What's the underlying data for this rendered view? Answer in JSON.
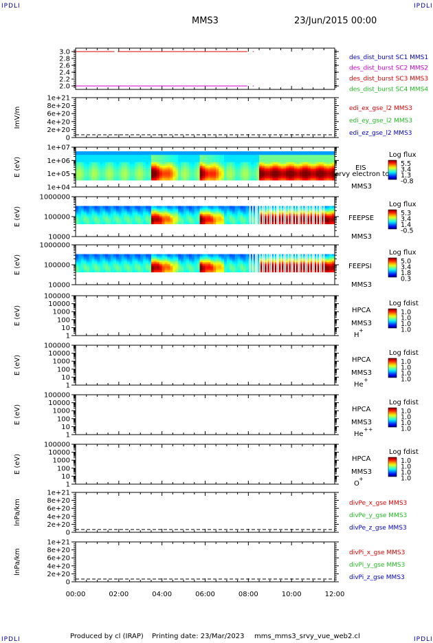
{
  "corners": {
    "tl": "IPDLI",
    "tr": "IPDLI",
    "bl": "IPDLI",
    "br": "IPDLI"
  },
  "header": {
    "spacecraft": "MMS3",
    "date": "23/Jun/2015 00:00"
  },
  "footer": {
    "produced": "Produced by cl (IRAP)",
    "printed": "Printing date: 23/Mar/2023",
    "script": "mms_mms3_srvy_vue_web2.cl"
  },
  "colors": {
    "red": "#dd0000",
    "green": "#22bb22",
    "blue": "#0000cc",
    "magenta": "#cc00cc"
  },
  "chart_data": {
    "type": "line",
    "time_axis": {
      "range_hours": [
        0,
        12
      ],
      "ticks": [
        "00:00",
        "02:00",
        "04:00",
        "06:00",
        "08:00",
        "10:00",
        "12:00"
      ]
    },
    "panels": [
      {
        "id": "burst",
        "type": "line",
        "ylim": [
          1.9,
          3.1
        ],
        "ticks": [
          "3.0",
          "2.8",
          "2.6",
          "2.4",
          "2.2",
          "2.0"
        ],
        "tick_values": [
          3.0,
          2.8,
          2.6,
          2.4,
          2.2,
          2.0
        ],
        "legend": [
          {
            "label": "des_dist_burst SC1 MMS1",
            "color": "#0000cc"
          },
          {
            "label": "des_dist_burst SC2 MMS2",
            "color": "#cc00cc"
          },
          {
            "label": "des_dist_burst SC3 MMS3",
            "color": "#dd0000"
          },
          {
            "label": "des_dist_burst SC4 MMS4",
            "color": "#22bb22"
          }
        ],
        "series": [
          {
            "name": "des_dist_burst SC3 MMS3",
            "y": 3.0,
            "segments": [
              [
                0.0,
                1.8
              ],
              [
                1.95,
                7.95
              ],
              [
                8.2,
                8.25
              ]
            ]
          },
          {
            "name": "des_dist_burst SC2 MMS2",
            "y": 2.0,
            "segments": [
              [
                0.0,
                7.95
              ],
              [
                8.2,
                8.25
              ]
            ]
          }
        ]
      },
      {
        "id": "edi",
        "type": "line",
        "ylabel": "ImV/m",
        "ylim": [
          0,
          1e+21
        ],
        "ticks": [
          "1e+21",
          "8e+20",
          "6e+20",
          "4e+20",
          "2e+20",
          "0"
        ],
        "tick_values": [
          1e+21,
          8e+20,
          6e+20,
          4e+20,
          2e+20,
          0
        ],
        "legend": [
          {
            "label": "edi_ex_gse_l2 MMS3",
            "color": "#dd0000"
          },
          {
            "label": "edi_ey_gse_l2 MMS3",
            "color": "#22bb22"
          },
          {
            "label": "edi_ez_gse_l2 MMS3",
            "color": "#0000cc"
          }
        ],
        "zero_line": true
      },
      {
        "id": "eis",
        "type": "heatmap",
        "ylabel": "E (eV)",
        "log": true,
        "ylim": [
          10000.0,
          10000000.0
        ],
        "ticks": [
          "1e+07",
          "1e+06",
          "1e+05",
          "1e+04"
        ],
        "tick_values": [
          10000000.0,
          1000000.0,
          100000.0,
          10000.0
        ],
        "labels": [
          "EIS",
          "srvy electron to",
          "MMS3"
        ],
        "colorbar": {
          "title": "Log flux",
          "ticks": [
            "5.5",
            "3.4",
            "1.3",
            "-0.8"
          ]
        }
      },
      {
        "id": "feepse",
        "type": "heatmap",
        "ylabel": "E (eV)",
        "log": true,
        "ylim": [
          10000.0,
          1000000.0
        ],
        "ticks": [
          "1000000",
          "100000",
          "10000"
        ],
        "tick_values": [
          1000000.0,
          100000.0,
          10000.0
        ],
        "labels": [
          "FEEPSE",
          "MMS3"
        ],
        "colorbar": {
          "title": "Log flux",
          "ticks": [
            "5.3",
            "3.4",
            "1.4",
            "-0.5"
          ]
        }
      },
      {
        "id": "feepsi",
        "type": "heatmap",
        "ylabel": "E (eV)",
        "log": true,
        "ylim": [
          10000.0,
          1000000.0
        ],
        "ticks": [
          "1000000",
          "100000",
          "10000"
        ],
        "tick_values": [
          1000000.0,
          100000.0,
          10000.0
        ],
        "labels": [
          "FEEPSI",
          "MMS3"
        ],
        "colorbar": {
          "title": "Log flux",
          "ticks": [
            "5.0",
            "3.4",
            "1.8",
            "0.3"
          ]
        }
      },
      {
        "id": "hpca_h",
        "type": "heatmap",
        "ylabel": "E (eV)",
        "log": true,
        "ylim": [
          1,
          100000.0
        ],
        "ticks": [
          "100000",
          "10000",
          "1000",
          "100",
          "10",
          "1"
        ],
        "tick_values": [
          100000.0,
          10000.0,
          1000.0,
          100.0,
          10,
          1
        ],
        "labels": [
          "HPCA",
          "MMS3"
        ],
        "species": "H",
        "charge": "+",
        "colorbar": {
          "title": "Log fdist",
          "ticks": [
            "1.0",
            "1.0",
            "1.0",
            "1.0"
          ]
        }
      },
      {
        "id": "hpca_he",
        "type": "heatmap",
        "ylabel": "E (eV)",
        "log": true,
        "ylim": [
          1,
          100000.0
        ],
        "ticks": [
          "100000",
          "10000",
          "1000",
          "100",
          "10",
          "1"
        ],
        "tick_values": [
          100000.0,
          10000.0,
          1000.0,
          100.0,
          10,
          1
        ],
        "labels": [
          "HPCA",
          "MMS3"
        ],
        "species": "He",
        "charge": "+",
        "colorbar": {
          "title": "Log fdist",
          "ticks": [
            "1.0",
            "1.0",
            "1.0",
            "1.0"
          ]
        }
      },
      {
        "id": "hpca_he2",
        "type": "heatmap",
        "ylabel": "E (eV)",
        "log": true,
        "ylim": [
          1,
          100000.0
        ],
        "ticks": [
          "100000",
          "10000",
          "1000",
          "100",
          "10",
          "1"
        ],
        "tick_values": [
          100000.0,
          10000.0,
          1000.0,
          100.0,
          10,
          1
        ],
        "labels": [
          "HPCA",
          "MMS3"
        ],
        "species": "He",
        "charge": "++",
        "colorbar": {
          "title": "Log fdist",
          "ticks": [
            "1.0",
            "1.0",
            "1.0",
            "1.0"
          ]
        }
      },
      {
        "id": "hpca_o",
        "type": "heatmap",
        "ylabel": "E (eV)",
        "log": true,
        "ylim": [
          1,
          100000.0
        ],
        "ticks": [
          "100000",
          "10000",
          "1000",
          "100",
          "10",
          "1"
        ],
        "tick_values": [
          100000.0,
          10000.0,
          1000.0,
          100.0,
          10,
          1
        ],
        "labels": [
          "HPCA",
          "MMS3"
        ],
        "species": "O",
        "charge": "+",
        "colorbar": {
          "title": "Log fdist",
          "ticks": [
            "1.0",
            "1.0",
            "1.0",
            "1.0"
          ]
        }
      },
      {
        "id": "divpe",
        "type": "line",
        "ylabel": "lnPa/km",
        "ylim": [
          0,
          1e+21
        ],
        "ticks": [
          "1e+21",
          "8e+20",
          "6e+20",
          "4e+20",
          "2e+20",
          "0"
        ],
        "tick_values": [
          1e+21,
          8e+20,
          6e+20,
          4e+20,
          2e+20,
          0
        ],
        "legend": [
          {
            "label": "divPe_x_gse MMS3",
            "color": "#dd0000"
          },
          {
            "label": "divPe_y_gse MMS3",
            "color": "#22bb22"
          },
          {
            "label": "divPe_z_gse MMS3",
            "color": "#0000cc"
          }
        ],
        "zero_line": true
      },
      {
        "id": "divpi",
        "type": "line",
        "ylabel": "lnPa/km",
        "ylim": [
          0,
          1e+21
        ],
        "ticks": [
          "1e+21",
          "8e+20",
          "6e+20",
          "4e+20",
          "2e+20",
          "0"
        ],
        "tick_values": [
          1e+21,
          8e+20,
          6e+20,
          4e+20,
          2e+20,
          0
        ],
        "legend": [
          {
            "label": "divPi_x_gse MMS3",
            "color": "#dd0000"
          },
          {
            "label": "divPi_y_gse MMS3",
            "color": "#22bb22"
          },
          {
            "label": "divPi_z_gse MMS3",
            "color": "#0000cc"
          }
        ],
        "zero_line": true
      }
    ]
  }
}
